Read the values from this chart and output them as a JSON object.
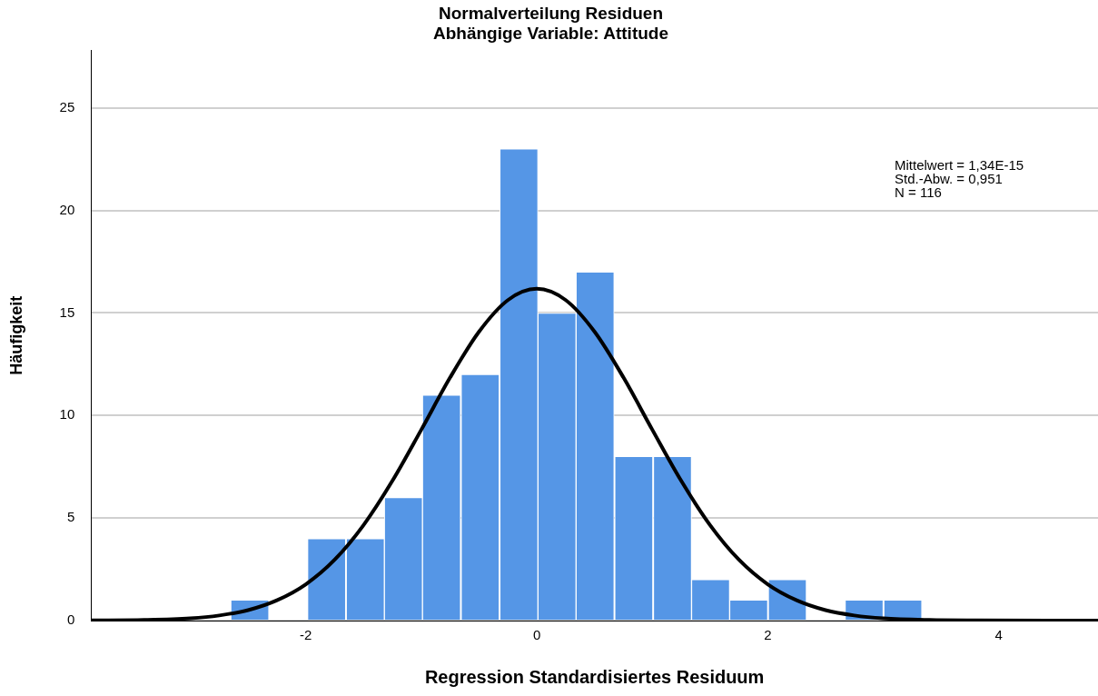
{
  "chart_data": {
    "type": "histogram",
    "title": "Normalverteilung Residuen",
    "subtitle": "Abhängige Variable: Attitude",
    "xlabel": "Regression Standardisiertes Residuum",
    "ylabel": "Häufigkeit",
    "bins": [
      -2.65,
      -2.32,
      -1.99,
      -1.65,
      -1.32,
      -0.99,
      -0.66,
      -0.32,
      0.01,
      0.34,
      0.67,
      1.01,
      1.34,
      1.67,
      2.0,
      2.34,
      2.67,
      3.0,
      3.34
    ],
    "values": [
      1,
      0,
      4,
      4,
      6,
      11,
      12,
      23,
      15,
      17,
      8,
      8,
      2,
      1,
      2,
      0,
      1,
      1
    ],
    "color": "#5596e6",
    "series": [
      {
        "type": "line",
        "color": "#000000",
        "x": [
          -3.86,
          -3.4,
          -3.0,
          -2.75,
          -2.5,
          -2.25,
          -2.0,
          -1.75,
          -1.5,
          -1.25,
          -1.0,
          -0.75,
          -0.5,
          -0.25,
          0,
          0.25,
          0.5,
          0.75,
          1.0,
          1.25,
          1.5,
          1.75,
          2.0,
          2.25,
          2.5,
          2.75,
          3.0,
          3.4,
          3.8,
          4.86
        ],
        "values": [
          0.01,
          0.03,
          0.11,
          0.25,
          0.51,
          0.99,
          1.77,
          2.97,
          4.66,
          6.82,
          9.31,
          11.86,
          14.09,
          15.63,
          16.18,
          15.63,
          14.09,
          11.86,
          9.31,
          6.82,
          4.66,
          2.97,
          1.77,
          0.99,
          0.51,
          0.25,
          0.11,
          0.03,
          0.01,
          0
        ]
      }
    ],
    "annotations": [
      "Mittelwert = 1,34E-15",
      "Std.-Abw. = 0,951",
      "N = 116"
    ],
    "xlim": [
      -3.86,
      4.86
    ],
    "xticks": [
      -2,
      0,
      2,
      4
    ],
    "ylim": [
      0,
      27.8
    ],
    "yticks": [
      0,
      5,
      10,
      15,
      20,
      25
    ],
    "grid": "y",
    "legend": false
  }
}
